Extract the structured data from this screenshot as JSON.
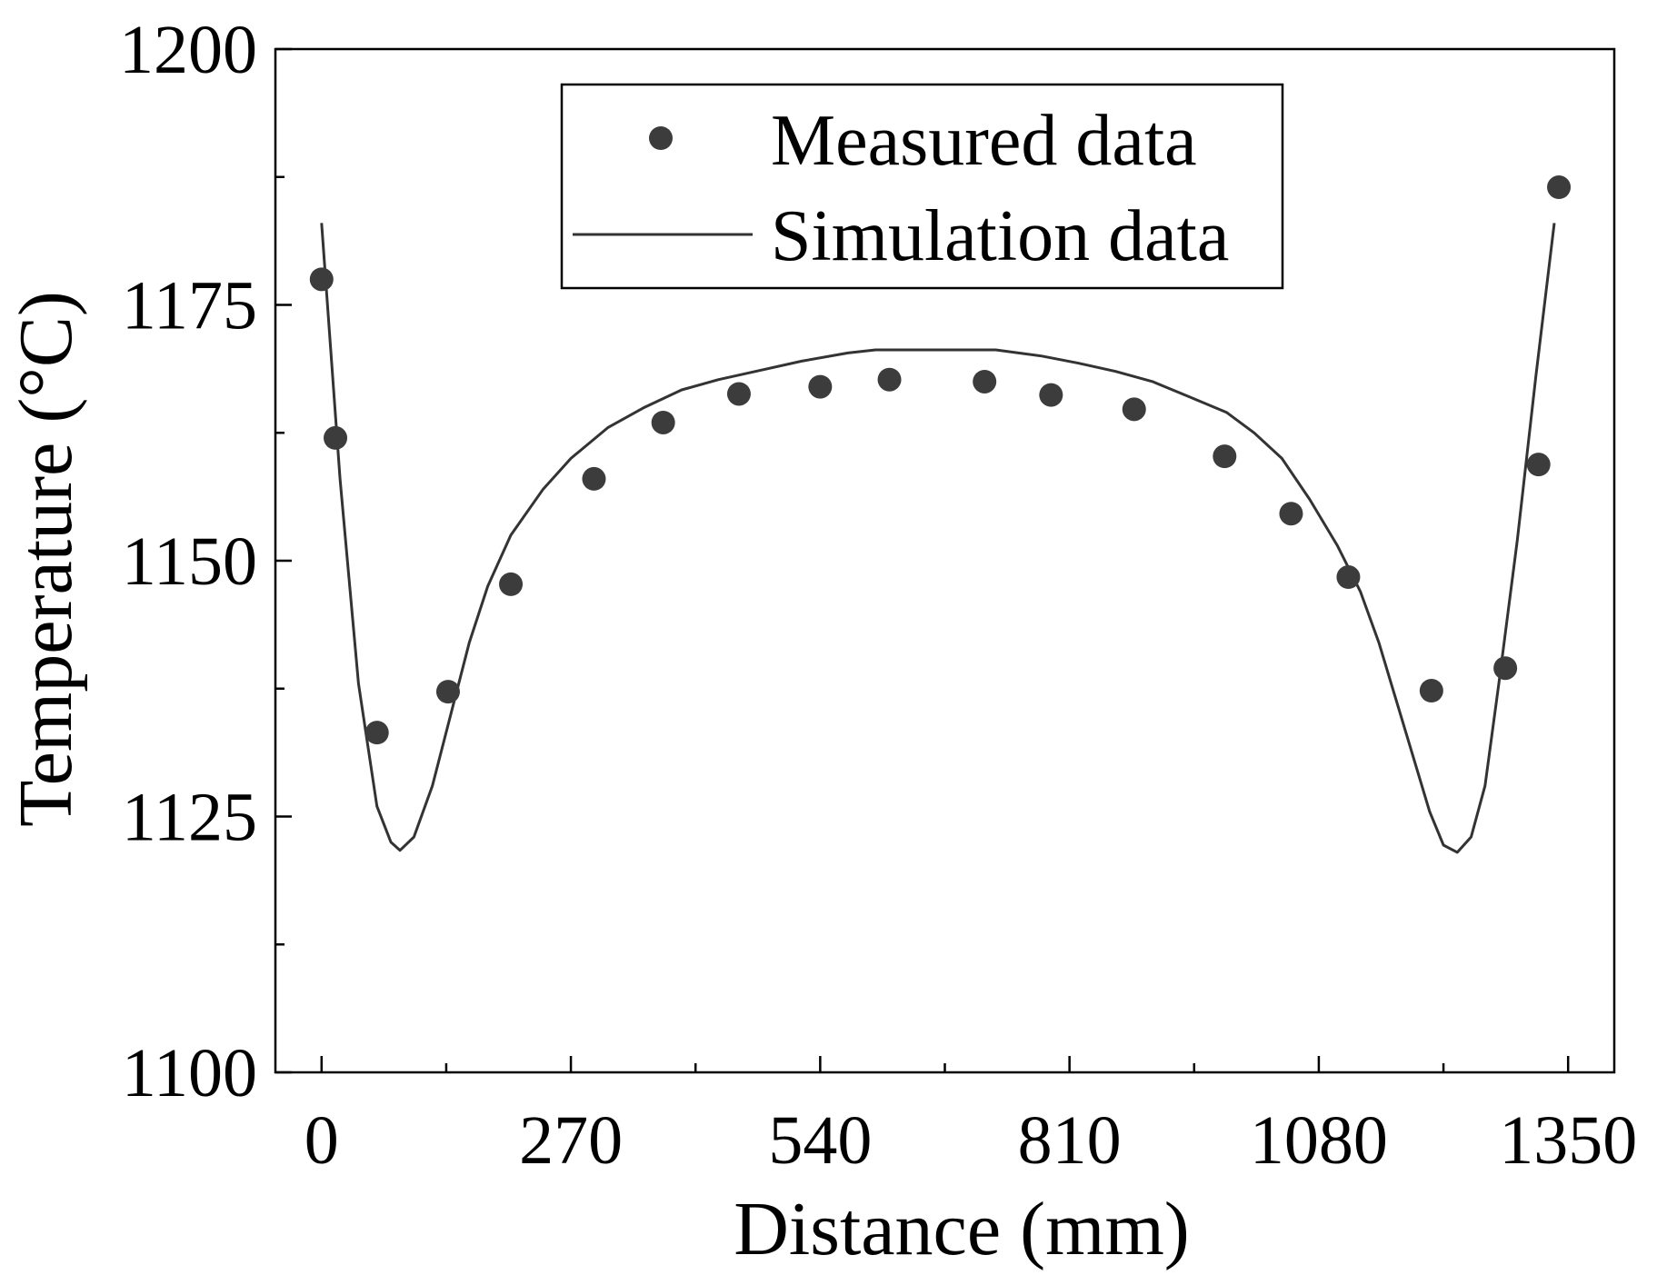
{
  "chart_data": {
    "type": "scatter",
    "title": "",
    "xlabel": "Distance (mm)",
    "ylabel": "Temperature (°C)",
    "xlim": [
      -50,
      1400
    ],
    "ylim": [
      1100,
      1200
    ],
    "x_ticks": [
      0,
      270,
      540,
      810,
      1080,
      1350
    ],
    "y_ticks": [
      1100,
      1125,
      1150,
      1175,
      1200
    ],
    "grid": false,
    "legend_position": "top-center",
    "colors": {
      "points": "#3c3c3c",
      "line": "#333333"
    },
    "series": [
      {
        "name": "Measured data",
        "kind": "scatter",
        "x": [
          0,
          15,
          60,
          137,
          205,
          295,
          370,
          452,
          540,
          615,
          718,
          790,
          880,
          978,
          1050,
          1112,
          1202,
          1282,
          1318,
          1340
        ],
        "y": [
          1177.5,
          1162,
          1133.2,
          1137.2,
          1147.7,
          1158,
          1163.5,
          1166.3,
          1167,
          1167.7,
          1167.5,
          1166.2,
          1164.8,
          1160.2,
          1154.6,
          1148.4,
          1137.3,
          1139.5,
          1159.4,
          1186.5
        ]
      },
      {
        "name": "Simulation data",
        "kind": "line",
        "x": [
          0,
          20,
          40,
          60,
          75,
          85,
          100,
          120,
          140,
          160,
          180,
          205,
          240,
          270,
          310,
          350,
          390,
          430,
          470,
          520,
          570,
          600,
          640,
          690,
          730,
          780,
          820,
          860,
          900,
          940,
          980,
          1010,
          1040,
          1070,
          1100,
          1125,
          1145,
          1165,
          1185,
          1200,
          1215,
          1230,
          1245,
          1260,
          1275,
          1295,
          1315,
          1335
        ],
        "y": [
          1183,
          1158,
          1138,
          1126,
          1122.5,
          1121.7,
          1123,
          1128,
          1135,
          1142,
          1147.5,
          1152.5,
          1157,
          1160,
          1163,
          1165,
          1166.7,
          1167.7,
          1168.5,
          1169.5,
          1170.3,
          1170.6,
          1170.6,
          1170.6,
          1170.6,
          1170,
          1169.3,
          1168.5,
          1167.5,
          1166,
          1164.5,
          1162.5,
          1160,
          1156,
          1151.5,
          1147,
          1142,
          1136,
          1130,
          1125.5,
          1122.2,
          1121.5,
          1123,
          1128,
          1138,
          1152,
          1168,
          1183
        ]
      }
    ]
  }
}
